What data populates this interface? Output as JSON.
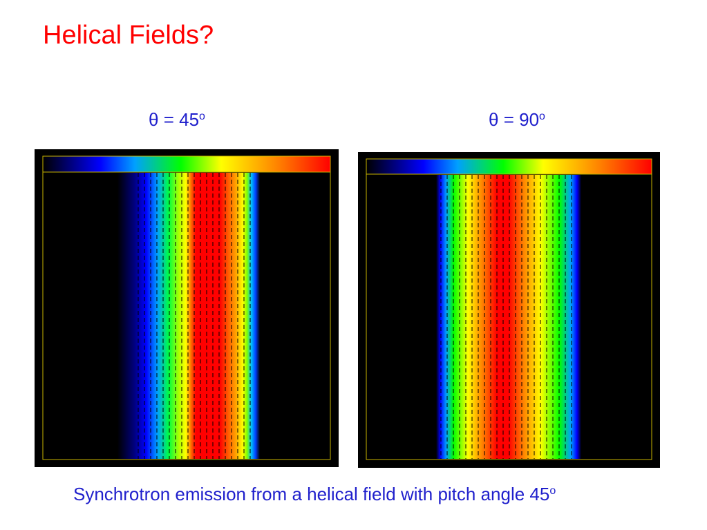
{
  "title": "Helical Fields?",
  "panels": [
    {
      "label_prefix": "θ = 45",
      "label_sup": "o"
    },
    {
      "label_prefix": "θ = 90",
      "label_sup": "o"
    }
  ],
  "caption": {
    "text": "Synchrotron emission from a helical field with pitch angle 45",
    "sup": "o"
  },
  "colors": {
    "title": "#ff0000",
    "text": "#1f1fcc",
    "panel_background": "#000000",
    "frame": "#c8b400"
  },
  "colorbar_stops": [
    "#000000",
    "#0000ff",
    "#00a0ff",
    "#00ff00",
    "#ffff00",
    "#ff8000",
    "#ff0000"
  ]
}
